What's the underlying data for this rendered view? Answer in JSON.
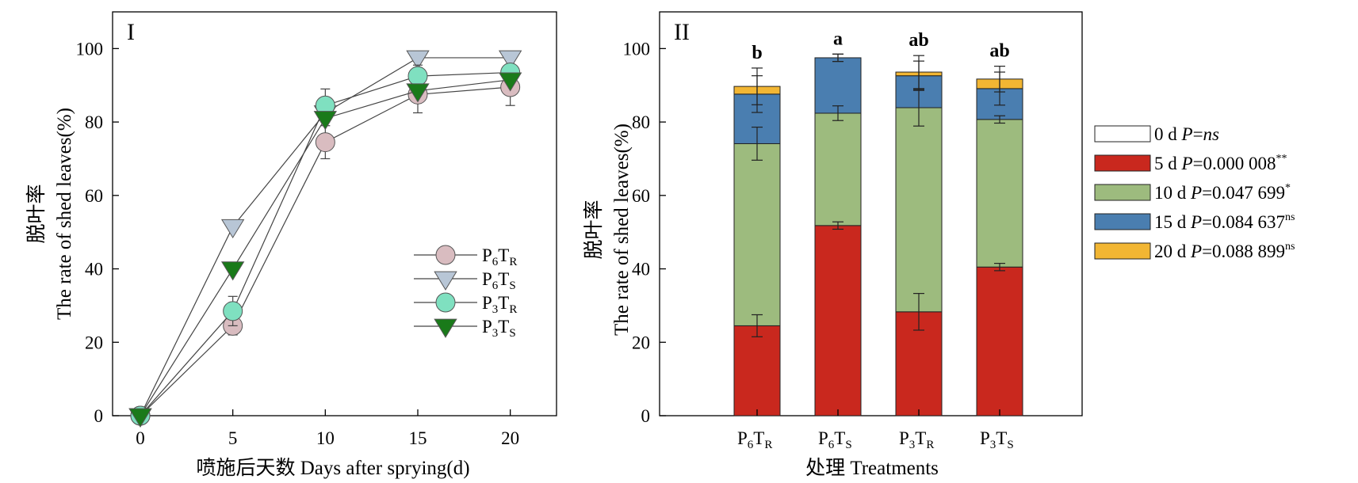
{
  "chart_data": [
    {
      "type": "line",
      "panel_label": "I",
      "xlabel_cn": "喷施后天数",
      "xlabel_en": "Days after sprying",
      "xlabel_unit": "d",
      "ylabel_cn": "脱叶率",
      "ylabel_en": "The rate of shed leaves",
      "ylabel_unit": "%",
      "x": [
        0,
        5,
        10,
        15,
        20
      ],
      "xlim": [
        -1.5,
        22.5
      ],
      "ylim": [
        0,
        110
      ],
      "yticks": [
        0,
        20,
        40,
        60,
        80,
        100
      ],
      "grid": false,
      "legend_position": "right",
      "series": [
        {
          "name": "P6TR",
          "sub1": "6",
          "sub2": "R",
          "marker": "circle",
          "color": "#d9bcc0",
          "values": [
            0,
            24.5,
            74.5,
            87.5,
            89.5
          ],
          "errors": [
            0,
            2.5,
            4.5,
            5,
            5
          ]
        },
        {
          "name": "P6TS",
          "sub1": "6",
          "sub2": "S",
          "marker": "triangle-down",
          "color": "#b8c6d6",
          "values": [
            0,
            51.5,
            82.5,
            97.5,
            97.5
          ],
          "errors": [
            0,
            0,
            0,
            0,
            0
          ]
        },
        {
          "name": "P3TR",
          "sub1": "3",
          "sub2": "R",
          "marker": "circle",
          "color": "#7fe0c0",
          "values": [
            0,
            28.5,
            84.5,
            92.5,
            93.5
          ],
          "errors": [
            0,
            4,
            4.5,
            3,
            2
          ]
        },
        {
          "name": "P3TS",
          "sub1": "3",
          "sub2": "S",
          "marker": "triangle-down",
          "color": "#1a7a1a",
          "values": [
            0,
            40,
            81,
            88.5,
            91.5
          ],
          "errors": [
            0,
            0,
            0,
            0,
            0
          ]
        }
      ]
    },
    {
      "type": "bar",
      "stacked": true,
      "panel_label": "II",
      "xlabel_cn": "处理",
      "xlabel_en": "Treatments",
      "ylabel_cn": "脱叶率",
      "ylabel_en": "The rate of shed leaves",
      "ylabel_unit": "%",
      "ylim": [
        0,
        110
      ],
      "yticks": [
        0,
        20,
        40,
        60,
        80,
        100
      ],
      "grid": false,
      "legend_position": "right",
      "categories": [
        {
          "main": "P",
          "sub1": "6",
          "mid": "T",
          "sub2": "R"
        },
        {
          "main": "P",
          "sub1": "6",
          "mid": "T",
          "sub2": "S"
        },
        {
          "main": "P",
          "sub1": "3",
          "mid": "T",
          "sub2": "R"
        },
        {
          "main": "P",
          "sub1": "3",
          "mid": "T",
          "sub2": "S"
        }
      ],
      "significance": [
        "b",
        "a",
        "ab",
        "ab"
      ],
      "series": [
        {
          "name": "0 d",
          "p_label": "P",
          "p_value": "=ns",
          "p_italic": true,
          "sup": "",
          "color": "#ffffff",
          "values": [
            0,
            0,
            0,
            0
          ],
          "errors": [
            0,
            0,
            0,
            0
          ]
        },
        {
          "name": "5 d",
          "p_label": "P",
          "p_value": "=0.000 008",
          "p_italic": false,
          "sup": "**",
          "color": "#c9281e",
          "values": [
            24.5,
            51.8,
            28.3,
            40.5
          ],
          "errors": [
            3,
            1,
            5,
            1
          ]
        },
        {
          "name": "10 d",
          "p_label": "P",
          "p_value": "=0.047 699",
          "p_italic": false,
          "sup": "*",
          "color": "#9dbb7e",
          "values": [
            49.6,
            30.6,
            55.6,
            40.2
          ],
          "errors": [
            4.5,
            2,
            5,
            1
          ]
        },
        {
          "name": "15 d",
          "p_label": "P",
          "p_value": "=0.084 637",
          "p_italic": false,
          "sup": "ns",
          "color": "#4a7eb0",
          "values": [
            13.5,
            15.1,
            8.7,
            8.4
          ],
          "errors": [
            5,
            1,
            4,
            4.5
          ]
        },
        {
          "name": "20 d",
          "p_label": "P",
          "p_value": "=0.088 899",
          "p_italic": false,
          "sup": "ns",
          "color": "#f2b633",
          "values": [
            2.1,
            0,
            1.0,
            2.6
          ],
          "errors": [
            5,
            1,
            4.5,
            3.5
          ]
        }
      ]
    }
  ]
}
